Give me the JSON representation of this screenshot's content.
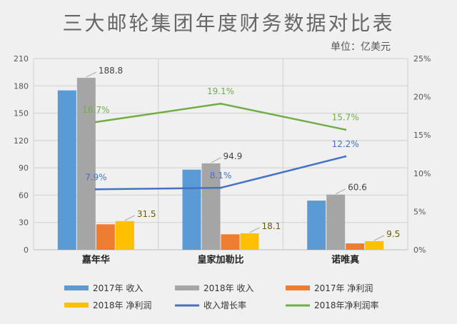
{
  "chart_data": {
    "type": "bar+line",
    "title": "三大邮轮集团年度财务数据对比表",
    "unit_note": "单位：亿美元",
    "categories": [
      "嘉年华",
      "皇家加勒比",
      "诺唯真"
    ],
    "y_left": {
      "ticks": [
        "0",
        "30",
        "60",
        "90",
        "120",
        "150",
        "180",
        "210"
      ],
      "range": [
        0,
        210
      ]
    },
    "y_right": {
      "ticks": [
        "0%",
        "5%",
        "10%",
        "15%",
        "20%",
        "25%"
      ],
      "range": [
        0,
        25
      ]
    },
    "grid": true,
    "legend_position": "bottom",
    "bar_series": [
      {
        "name": "2017年 收入",
        "color": "#5b9bd5",
        "values": [
          175,
          88,
          54
        ],
        "labels": [
          "",
          "",
          ""
        ]
      },
      {
        "name": "2018年 收入",
        "color": "#a5a5a5",
        "values": [
          188.8,
          94.9,
          60.6
        ],
        "labels": [
          "188.8",
          "94.9",
          "60.6"
        ]
      },
      {
        "name": "2017年 净利润",
        "color": "#ed7d31",
        "values": [
          28,
          17,
          7
        ],
        "labels": [
          "",
          "",
          ""
        ]
      },
      {
        "name": "2018年 净利润",
        "color": "#ffc000",
        "values": [
          31.5,
          18.1,
          9.5
        ],
        "labels": [
          "31.5",
          "18.1",
          "9.5"
        ]
      }
    ],
    "line_series": [
      {
        "name": "收入增长率",
        "color": "#4472c4",
        "values": [
          7.9,
          8.1,
          12.2
        ],
        "labels": [
          "7.9%",
          "8.1%",
          "12.2%"
        ]
      },
      {
        "name": "2018年净利润率",
        "color": "#70ad47",
        "values": [
          16.7,
          19.1,
          15.7
        ],
        "labels": [
          "16.7%",
          "19.1%",
          "15.7%"
        ]
      }
    ]
  }
}
